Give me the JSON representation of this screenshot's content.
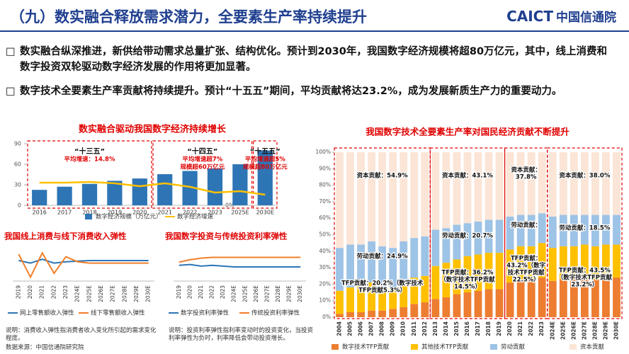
{
  "header": {
    "title": "（九）数实融合释放需求潜力，全要素生产率持续提升",
    "logo_en": "CAICT",
    "logo_cn": "中国信通院"
  },
  "bullets": [
    "数实融合纵深推进，新供给带动需求总量扩张、结构优化。预计到2030年，我国数字经济规模将超80万亿元，其中，线上消费和数字投资双轮驱动数字经济发展的作用将更加显著。",
    "数字技术全要素生产率贡献将持续提升。预计“十五五”期间，平均贡献将达23.2%，成为发展新质生产力的重要动力。"
  ],
  "chart_data": [
    {
      "type": "bar-line",
      "title": "数实融合驱动我国数字经济持续增长",
      "categories": [
        "2016",
        "2017",
        "2018",
        "2019",
        "2020",
        "2021",
        "2022",
        "2023",
        "2025E",
        "2030E"
      ],
      "series": [
        {
          "name": "数字经济规模（万亿元）",
          "color": "#2e75b6",
          "values": [
            22.6,
            27.2,
            31.3,
            35.8,
            39.2,
            45.5,
            50.2,
            53.9,
            60,
            80
          ]
        },
        {
          "name": "数字经济增速",
          "color": "#ffc000",
          "axis": "y2",
          "values": [
            14.7,
            14.7,
            15.2,
            14.3,
            12.4,
            14.3,
            12.0,
            8.3,
            9.2,
            6.9
          ]
        }
      ],
      "ylim": [
        0,
        90
      ],
      "yticks": [
        0,
        30,
        60,
        90
      ],
      "y2lim": [
        0,
        40
      ],
      "y2ticks": [
        {
          "value": 0,
          "label": "0%"
        }
      ],
      "annotations": [
        [
          "“十三五”",
          "平均增速：14.8%"
        ],
        [
          "“十四五”",
          "平均增速超7%",
          "规模超60万亿元"
        ],
        [
          "“十五五”",
          "平均增速超5%",
          "规模超80万亿元"
        ]
      ]
    },
    {
      "type": "line",
      "title": "我国线上消费与线下消费收入弹性",
      "categories": [
        "2019",
        "2020",
        "2021",
        "2022",
        "2023",
        "2024E",
        "2025E",
        "2026E",
        "2027E",
        "2028E",
        "2029E",
        "2030E"
      ],
      "series": [
        {
          "name": "网上零售额收入弹性",
          "color": "#2e75b6",
          "values": [
            1.5,
            1.3,
            1.6,
            1.3,
            1.4,
            1.45,
            1.5,
            1.5,
            1.5,
            1.5,
            1.5,
            1.5
          ]
        },
        {
          "name": "线下零售额收入弹性",
          "color": "#f07f2a",
          "values": [
            2.0,
            0.2,
            2.1,
            0.5,
            1.8,
            1.4,
            1.3,
            1.3,
            1.3,
            1.3,
            1.3,
            1.3
          ]
        }
      ],
      "ylim": [
        0,
        2.5
      ]
    },
    {
      "type": "line",
      "title": "我国数字投资与传统投资利率弹性",
      "categories": [
        "2019",
        "2020",
        "2021",
        "2022",
        "2023",
        "2024E",
        "2025E",
        "2026E",
        "2027E",
        "2028E",
        "2029E",
        "2030E"
      ],
      "series": [
        {
          "name": "数字投资利率弹性",
          "color": "#2e75b6",
          "values": [
            0.9,
            0.95,
            0.85,
            0.9,
            0.85,
            0.8,
            0.8,
            0.8,
            0.8,
            0.8,
            0.8,
            0.8
          ]
        },
        {
          "name": "传统投资利率弹性",
          "color": "#f07f2a",
          "values": [
            1.1,
            1.25,
            1.35,
            1.4,
            1.4,
            1.4,
            1.4,
            1.4,
            1.4,
            1.4,
            1.4,
            1.4
          ]
        }
      ],
      "ylim": [
        0,
        2
      ]
    },
    {
      "type": "stacked-bar",
      "title": "我国数字技术全要素生产率对国民经济贡献不断提升",
      "categories": [
        "2004",
        "2005",
        "2006",
        "2007",
        "2008",
        "2009",
        "2010",
        "2011",
        "2012",
        "2013",
        "2014",
        "2015",
        "2016",
        "2017",
        "2018",
        "2019",
        "2020",
        "2021",
        "2022",
        "2023",
        "2024E",
        "2025E",
        "2026E",
        "2027E",
        "2028E",
        "2029E",
        "2030E"
      ],
      "series": [
        {
          "name": "数字技术TFP贡献",
          "color": "#ed7d31",
          "values": [
            2,
            3,
            3,
            4,
            4,
            5,
            6,
            8,
            9,
            11,
            12,
            14,
            15,
            16,
            17,
            17,
            21,
            22,
            23,
            24,
            22,
            23,
            23,
            23,
            23,
            24,
            24
          ]
        },
        {
          "name": "其他技术TFP贡献",
          "color": "#ffc000",
          "values": [
            14,
            15,
            16,
            17,
            14,
            13,
            15,
            16,
            16,
            20,
            21,
            21,
            22,
            22,
            22,
            22,
            20,
            21,
            20,
            21,
            20,
            20,
            20,
            21,
            20,
            20,
            20
          ]
        },
        {
          "name": "劳动贡献",
          "color": "#9dc3e6",
          "values": [
            26,
            26,
            25,
            25,
            25,
            24,
            25,
            24,
            24,
            22,
            21,
            21,
            20,
            20,
            20,
            20,
            20,
            19,
            19,
            18,
            19,
            19,
            19,
            18,
            19,
            18,
            18
          ]
        },
        {
          "name": "资本贡献",
          "color": "#fbe5d6",
          "values": [
            58,
            56,
            56,
            54,
            57,
            58,
            54,
            52,
            51,
            47,
            46,
            44,
            43,
            42,
            41,
            41,
            39,
            38,
            38,
            37,
            39,
            38,
            38,
            38,
            38,
            38,
            38
          ]
        }
      ],
      "ylim": [
        0,
        100
      ],
      "yticks": [
        {
          "value": 0,
          "label": "0%"
        },
        {
          "value": 10,
          "label": "10%"
        },
        {
          "value": 20,
          "label": "20%"
        },
        {
          "value": 30,
          "label": "30%"
        },
        {
          "value": 40,
          "label": "40%"
        },
        {
          "value": 50,
          "label": "50%"
        },
        {
          "value": 60,
          "label": "60%"
        },
        {
          "value": 70,
          "label": "70%"
        },
        {
          "value": 80,
          "label": "80%"
        },
        {
          "value": 90,
          "label": "90%"
        },
        {
          "value": 100,
          "label": "100%"
        }
      ],
      "annotations": [
        [
          "资本贡献：54.9%"
        ],
        [
          "劳动贡献：24.9%"
        ],
        [
          "TFP贡献：20.2%（数字技术",
          "TFP贡献5.3%）"
        ],
        [
          "资本贡献：43.1%"
        ],
        [
          "劳动贡献：20.7%"
        ],
        [
          "TFP贡献：36.2%",
          "（数字技术TFP贡献",
          "14.5%）"
        ],
        [
          "资本贡献：",
          "37.8%"
        ],
        [
          "劳动贡献："
        ],
        [
          "TFP贡献：",
          "43.2%（数字",
          "技术TFP贡献",
          "22.5%）"
        ],
        [
          "资本贡献：38.0%"
        ],
        [
          "劳动贡献：18.5%"
        ],
        [
          "TFP贡献：43.5%",
          "（数字技术TFP贡献",
          "23.2%）"
        ]
      ]
    }
  ],
  "notes": [
    "说明：消费收入弹性指消费者收入变化所引起的需求变化程度。",
    "说明：投资利率弹性指利率变动时的投资变化，当投资利率弹性为负时，利率降低会带动投资增长。"
  ],
  "source": "数据来源：中国信通院研究院"
}
